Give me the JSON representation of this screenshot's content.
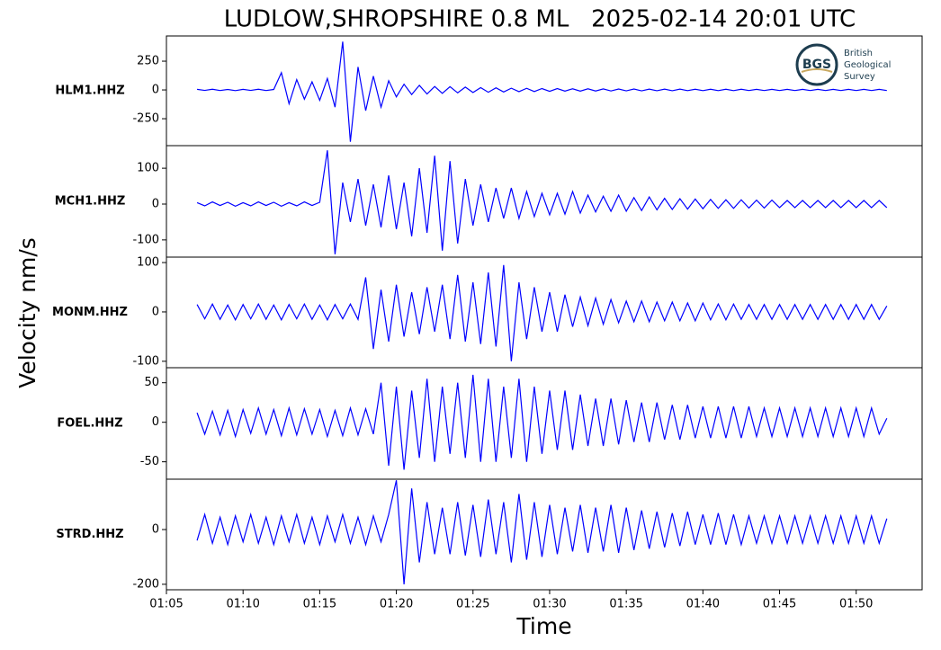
{
  "title": "LUDLOW,SHROPSHIRE 0.8 ML   2025-02-14 20:01 UTC",
  "xlabel": "Time",
  "ylabel": "Velocity nm/s",
  "logo": {
    "mark": "BGS",
    "lines": [
      "British",
      "Geological",
      "Survey"
    ]
  },
  "chart_data": [
    {
      "type": "line",
      "ylabel": "HLM1.HHZ",
      "xlim": [
        5,
        54.3
      ],
      "ylim": [
        -484,
        469
      ],
      "yticks": [
        -250,
        0,
        250
      ],
      "x": [
        7,
        7.5,
        8,
        8.5,
        9,
        9.5,
        10,
        10.5,
        11,
        11.5,
        12,
        12.5,
        13,
        13.5,
        14,
        14.5,
        15,
        15.5,
        16,
        16.5,
        17,
        17.5,
        18,
        18.5,
        19,
        19.5,
        20,
        20.5,
        21,
        21.5,
        22,
        22.5,
        23,
        23.5,
        24,
        24.5,
        25,
        25.5,
        26,
        26.5,
        27,
        27.5,
        28,
        28.5,
        29,
        29.5,
        30,
        30.5,
        31,
        31.5,
        32,
        32.5,
        33,
        33.5,
        34,
        34.5,
        35,
        35.5,
        36,
        36.5,
        37,
        37.5,
        38,
        38.5,
        39,
        39.5,
        40,
        40.5,
        41,
        41.5,
        42,
        42.5,
        43,
        43.5,
        44,
        44.5,
        45,
        45.5,
        46,
        46.5,
        47,
        47.5,
        48,
        48.5,
        49,
        49.5,
        50,
        50.5,
        51,
        51.5,
        52
      ],
      "series": [
        {
          "color": "#0000ff",
          "values": [
            5,
            -4,
            6,
            -5,
            4,
            -6,
            5,
            -4,
            6,
            -5,
            4,
            150,
            -120,
            90,
            -80,
            70,
            -90,
            100,
            -150,
            420,
            -450,
            200,
            -180,
            120,
            -150,
            80,
            -60,
            50,
            -40,
            40,
            -35,
            30,
            -30,
            28,
            -25,
            25,
            -22,
            20,
            -20,
            18,
            -18,
            15,
            -15,
            14,
            -14,
            12,
            -12,
            12,
            -10,
            10,
            -10,
            10,
            -9,
            9,
            -9,
            8,
            -8,
            8,
            -8,
            7,
            -7,
            7,
            -7,
            7,
            -6,
            6,
            -6,
            6,
            -6,
            6,
            -6,
            6,
            -5,
            5,
            -5,
            5,
            -5,
            5,
            -5,
            5,
            -5,
            5,
            -5,
            5,
            -5,
            5,
            -5,
            5,
            -5,
            5,
            -5
          ]
        }
      ]
    },
    {
      "type": "line",
      "ylabel": "MCH1.HHZ",
      "xlim": [
        5,
        54.3
      ],
      "ylim": [
        -148,
        163
      ],
      "yticks": [
        -100,
        0,
        100
      ],
      "x": [
        7,
        7.5,
        8,
        8.5,
        9,
        9.5,
        10,
        10.5,
        11,
        11.5,
        12,
        12.5,
        13,
        13.5,
        14,
        14.5,
        15,
        15.5,
        16,
        16.5,
        17,
        17.5,
        18,
        18.5,
        19,
        19.5,
        20,
        20.5,
        21,
        21.5,
        22,
        22.5,
        23,
        23.5,
        24,
        24.5,
        25,
        25.5,
        26,
        26.5,
        27,
        27.5,
        28,
        28.5,
        29,
        29.5,
        30,
        30.5,
        31,
        31.5,
        32,
        32.5,
        33,
        33.5,
        34,
        34.5,
        35,
        35.5,
        36,
        36.5,
        37,
        37.5,
        38,
        38.5,
        39,
        39.5,
        40,
        40.5,
        41,
        41.5,
        42,
        42.5,
        43,
        43.5,
        44,
        44.5,
        45,
        45.5,
        46,
        46.5,
        47,
        47.5,
        48,
        48.5,
        49,
        49.5,
        50,
        50.5,
        51,
        51.5,
        52
      ],
      "series": [
        {
          "color": "#0000ff",
          "values": [
            4,
            -5,
            6,
            -4,
            5,
            -6,
            4,
            -5,
            6,
            -4,
            5,
            -6,
            4,
            -5,
            6,
            -4,
            5,
            150,
            -140,
            60,
            -50,
            70,
            -60,
            55,
            -65,
            80,
            -70,
            60,
            -90,
            100,
            -80,
            135,
            -130,
            120,
            -110,
            70,
            -60,
            55,
            -50,
            45,
            -40,
            45,
            -40,
            35,
            -35,
            30,
            -30,
            30,
            -28,
            35,
            -25,
            25,
            -22,
            22,
            -20,
            25,
            -20,
            18,
            -18,
            20,
            -16,
            16,
            -15,
            15,
            -14,
            14,
            -13,
            13,
            -12,
            12,
            -12,
            12,
            -11,
            11,
            -11,
            11,
            -10,
            10,
            -10,
            10,
            -10,
            10,
            -10,
            10,
            -10,
            10,
            -10,
            10,
            -10,
            10,
            -10
          ]
        }
      ]
    },
    {
      "type": "line",
      "ylabel": "MONM.HHZ",
      "xlim": [
        5,
        54.3
      ],
      "ylim": [
        -113,
        111
      ],
      "yticks": [
        -100,
        0,
        100
      ],
      "x": [
        7,
        7.5,
        8,
        8.5,
        9,
        9.5,
        10,
        10.5,
        11,
        11.5,
        12,
        12.5,
        13,
        13.5,
        14,
        14.5,
        15,
        15.5,
        16,
        16.5,
        17,
        17.5,
        18,
        18.5,
        19,
        19.5,
        20,
        20.5,
        21,
        21.5,
        22,
        22.5,
        23,
        23.5,
        24,
        24.5,
        25,
        25.5,
        26,
        26.5,
        27,
        27.5,
        28,
        28.5,
        29,
        29.5,
        30,
        30.5,
        31,
        31.5,
        32,
        32.5,
        33,
        33.5,
        34,
        34.5,
        35,
        35.5,
        36,
        36.5,
        37,
        37.5,
        38,
        38.5,
        39,
        39.5,
        40,
        40.5,
        41,
        41.5,
        42,
        42.5,
        43,
        43.5,
        44,
        44.5,
        45,
        45.5,
        46,
        46.5,
        47,
        47.5,
        48,
        48.5,
        49,
        49.5,
        50,
        50.5,
        51,
        51.5,
        52
      ],
      "series": [
        {
          "color": "#0000ff",
          "values": [
            15,
            -14,
            16,
            -15,
            14,
            -16,
            15,
            -14,
            16,
            -15,
            14,
            -16,
            15,
            -14,
            16,
            -15,
            14,
            -16,
            15,
            -14,
            16,
            -15,
            70,
            -75,
            45,
            -60,
            55,
            -50,
            40,
            -45,
            50,
            -40,
            55,
            -55,
            75,
            -60,
            60,
            -65,
            80,
            -70,
            95,
            -100,
            60,
            -55,
            50,
            -40,
            40,
            -40,
            35,
            -30,
            30,
            -28,
            28,
            -25,
            25,
            -22,
            22,
            -20,
            22,
            -20,
            20,
            -18,
            20,
            -18,
            18,
            -18,
            18,
            -16,
            16,
            -16,
            16,
            -15,
            15,
            -15,
            15,
            -15,
            15,
            -15,
            15,
            -15,
            15,
            -15,
            15,
            -15,
            15,
            -15,
            15,
            -15,
            15,
            -15,
            12
          ]
        }
      ]
    },
    {
      "type": "line",
      "ylabel": "FOEL.HHZ",
      "xlim": [
        5,
        54.3
      ],
      "ylim": [
        -72,
        69
      ],
      "yticks": [
        -50,
        0,
        50
      ],
      "x": [
        7,
        7.5,
        8,
        8.5,
        9,
        9.5,
        10,
        10.5,
        11,
        11.5,
        12,
        12.5,
        13,
        13.5,
        14,
        14.5,
        15,
        15.5,
        16,
        16.5,
        17,
        17.5,
        18,
        18.5,
        19,
        19.5,
        20,
        20.5,
        21,
        21.5,
        22,
        22.5,
        23,
        23.5,
        24,
        24.5,
        25,
        25.5,
        26,
        26.5,
        27,
        27.5,
        28,
        28.5,
        29,
        29.5,
        30,
        30.5,
        31,
        31.5,
        32,
        32.5,
        33,
        33.5,
        34,
        34.5,
        35,
        35.5,
        36,
        36.5,
        37,
        37.5,
        38,
        38.5,
        39,
        39.5,
        40,
        40.5,
        41,
        41.5,
        42,
        42.5,
        43,
        43.5,
        44,
        44.5,
        45,
        45.5,
        46,
        46.5,
        47,
        47.5,
        48,
        48.5,
        49,
        49.5,
        50,
        50.5,
        51,
        51.5,
        52
      ],
      "series": [
        {
          "color": "#0000ff",
          "values": [
            12,
            -15,
            14,
            -16,
            15,
            -18,
            16,
            -14,
            18,
            -15,
            16,
            -17,
            18,
            -16,
            17,
            -15,
            16,
            -18,
            15,
            -17,
            18,
            -16,
            17,
            -15,
            50,
            -55,
            45,
            -60,
            40,
            -45,
            55,
            -50,
            45,
            -40,
            50,
            -45,
            60,
            -50,
            55,
            -50,
            45,
            -45,
            55,
            -50,
            45,
            -40,
            40,
            -35,
            40,
            -35,
            35,
            -30,
            30,
            -30,
            30,
            -28,
            28,
            -25,
            25,
            -25,
            25,
            -22,
            22,
            -22,
            22,
            -20,
            20,
            -20,
            20,
            -20,
            20,
            -20,
            20,
            -18,
            18,
            -18,
            18,
            -18,
            18,
            -18,
            18,
            -18,
            18,
            -18,
            18,
            -18,
            18,
            -18,
            18,
            -15,
            5
          ]
        }
      ]
    },
    {
      "type": "line",
      "ylabel": "STRD.HHZ",
      "xlim": [
        5,
        54.3
      ],
      "ylim": [
        -220,
        184
      ],
      "yticks": [
        -200,
        0
      ],
      "xticks": [
        {
          "value": 5,
          "label": "01:05"
        },
        {
          "value": 10,
          "label": "01:10"
        },
        {
          "value": 15,
          "label": "01:15"
        },
        {
          "value": 20,
          "label": "01:20"
        },
        {
          "value": 25,
          "label": "01:25"
        },
        {
          "value": 30,
          "label": "01:30"
        },
        {
          "value": 35,
          "label": "01:35"
        },
        {
          "value": 40,
          "label": "01:40"
        },
        {
          "value": 45,
          "label": "01:45"
        },
        {
          "value": 50,
          "label": "01:50"
        }
      ],
      "x": [
        7,
        7.5,
        8,
        8.5,
        9,
        9.5,
        10,
        10.5,
        11,
        11.5,
        12,
        12.5,
        13,
        13.5,
        14,
        14.5,
        15,
        15.5,
        16,
        16.5,
        17,
        17.5,
        18,
        18.5,
        19,
        19.5,
        20,
        20.5,
        21,
        21.5,
        22,
        22.5,
        23,
        23.5,
        24,
        24.5,
        25,
        25.5,
        26,
        26.5,
        27,
        27.5,
        28,
        28.5,
        29,
        29.5,
        30,
        30.5,
        31,
        31.5,
        32,
        32.5,
        33,
        33.5,
        34,
        34.5,
        35,
        35.5,
        36,
        36.5,
        37,
        37.5,
        38,
        38.5,
        39,
        39.5,
        40,
        40.5,
        41,
        41.5,
        42,
        42.5,
        43,
        43.5,
        44,
        44.5,
        45,
        45.5,
        46,
        46.5,
        47,
        47.5,
        48,
        48.5,
        49,
        49.5,
        50,
        50.5,
        51,
        51.5,
        52
      ],
      "series": [
        {
          "color": "#0000ff",
          "values": [
            -40,
            55,
            -50,
            45,
            -55,
            50,
            -45,
            55,
            -50,
            45,
            -55,
            50,
            -45,
            55,
            -50,
            45,
            -55,
            50,
            -45,
            55,
            -50,
            45,
            -55,
            50,
            -45,
            55,
            180,
            -200,
            150,
            -120,
            100,
            -90,
            80,
            -90,
            100,
            -95,
            90,
            -100,
            110,
            -90,
            100,
            -120,
            130,
            -110,
            100,
            -100,
            90,
            -90,
            80,
            -80,
            90,
            -85,
            80,
            -80,
            90,
            -85,
            80,
            -75,
            70,
            -70,
            65,
            -65,
            60,
            -60,
            65,
            -55,
            55,
            -55,
            60,
            -55,
            55,
            -55,
            50,
            -50,
            50,
            -50,
            50,
            -50,
            50,
            -50,
            50,
            -50,
            50,
            -50,
            50,
            -50,
            50,
            -50,
            50,
            -50,
            40
          ]
        }
      ]
    }
  ]
}
